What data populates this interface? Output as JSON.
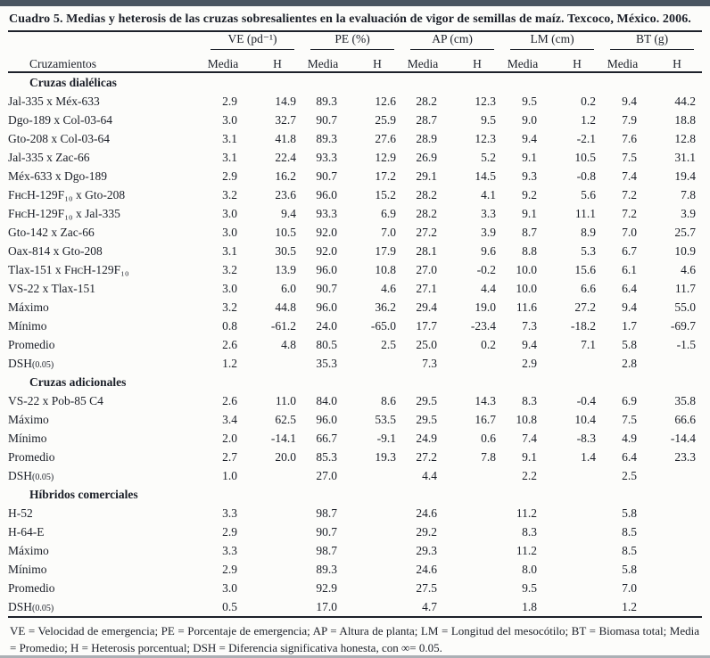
{
  "caption": "Cuadro 5. Medias y heterosis de las cruzas sobresalientes en la evaluación de vigor de semillas de maíz. Texcoco, México. 2006.",
  "table": {
    "row_header": "Cruzamientos",
    "groups": [
      {
        "label": "VE (pd⁻¹)"
      },
      {
        "label": "PE (%)"
      },
      {
        "label": "AP (cm)"
      },
      {
        "label": "LM (cm)"
      },
      {
        "label": "BT (g)"
      }
    ],
    "subheaders": [
      "Media",
      "H"
    ],
    "sections": [
      {
        "title": "Cruzas dialélicas",
        "rows": [
          {
            "label": "Jal-335 x Méx-633",
            "values": [
              "2.9",
              "14.9",
              "89.3",
              "12.6",
              "28.2",
              "12.3",
              "9.5",
              "0.2",
              "9.4",
              "44.2"
            ]
          },
          {
            "label": "Dgo-189 x Col-03-64",
            "values": [
              "3.0",
              "32.7",
              "90.7",
              "25.9",
              "28.7",
              "9.5",
              "9.0",
              "1.2",
              "7.9",
              "18.8"
            ]
          },
          {
            "label": "Gto-208 x Col-03-64",
            "values": [
              "3.1",
              "41.8",
              "89.3",
              "27.6",
              "28.9",
              "12.3",
              "9.4",
              "-2.1",
              "7.6",
              "12.8"
            ]
          },
          {
            "label": "Jal-335 x Zac-66",
            "values": [
              "3.1",
              "22.4",
              "93.3",
              "12.9",
              "26.9",
              "5.2",
              "9.1",
              "10.5",
              "7.5",
              "31.1"
            ]
          },
          {
            "label": "Méx-633 x Dgo-189",
            "values": [
              "2.9",
              "16.2",
              "90.7",
              "17.2",
              "29.1",
              "14.5",
              "9.3",
              "-0.8",
              "7.4",
              "19.4"
            ]
          },
          {
            "label": "FʜᴄH-129F₁₀ x Gto-208",
            "values": [
              "3.2",
              "23.6",
              "96.0",
              "15.2",
              "28.2",
              "4.1",
              "9.2",
              "5.6",
              "7.2",
              "7.8"
            ]
          },
          {
            "label": "FʜᴄH-129F₁₀ x Jal-335",
            "values": [
              "3.0",
              "9.4",
              "93.3",
              "6.9",
              "28.2",
              "3.3",
              "9.1",
              "11.1",
              "7.2",
              "3.9"
            ]
          },
          {
            "label": "Gto-142 x Zac-66",
            "values": [
              "3.0",
              "10.5",
              "92.0",
              "7.0",
              "27.2",
              "3.9",
              "8.7",
              "8.9",
              "7.0",
              "25.7"
            ]
          },
          {
            "label": "Oax-814 x Gto-208",
            "values": [
              "3.1",
              "30.5",
              "92.0",
              "17.9",
              "28.1",
              "9.6",
              "8.8",
              "5.3",
              "6.7",
              "10.9"
            ]
          },
          {
            "label": "Tlax-151 x FʜᴄH-129F₁₀",
            "values": [
              "3.2",
              "13.9",
              "96.0",
              "10.8",
              "27.0",
              "-0.2",
              "10.0",
              "15.6",
              "6.1",
              "4.6"
            ]
          },
          {
            "label": "VS-22 x Tlax-151",
            "values": [
              "3.0",
              "6.0",
              "90.7",
              "4.6",
              "27.1",
              "4.4",
              "10.0",
              "6.6",
              "6.4",
              "11.7"
            ]
          },
          {
            "label": "Máximo",
            "values": [
              "3.2",
              "44.8",
              "96.0",
              "36.2",
              "29.4",
              "19.0",
              "11.6",
              "27.2",
              "9.4",
              "55.0"
            ]
          },
          {
            "label": "Mínimo",
            "values": [
              "0.8",
              "-61.2",
              "24.0",
              "-65.0",
              "17.7",
              "-23.4",
              "7.3",
              "-18.2",
              "1.7",
              "-69.7"
            ]
          },
          {
            "label": "Promedio",
            "values": [
              "2.6",
              "4.8",
              "80.5",
              "2.5",
              "25.0",
              "0.2",
              "9.4",
              "7.1",
              "5.8",
              "-1.5"
            ]
          },
          {
            "label": "DSH",
            "sub": "(0.05)",
            "values": [
              "1.2",
              "",
              "35.3",
              "",
              "7.3",
              "",
              "2.9",
              "",
              "2.8",
              ""
            ]
          }
        ]
      },
      {
        "title": "Cruzas adicionales",
        "rows": [
          {
            "label": "VS-22 x Pob-85 C4",
            "values": [
              "2.6",
              "11.0",
              "84.0",
              "8.6",
              "29.5",
              "14.3",
              "8.3",
              "-0.4",
              "6.9",
              "35.8"
            ]
          },
          {
            "label": "Máximo",
            "values": [
              "3.4",
              "62.5",
              "96.0",
              "53.5",
              "29.5",
              "16.7",
              "10.8",
              "10.4",
              "7.5",
              "66.6"
            ]
          },
          {
            "label": "Mínimo",
            "values": [
              "2.0",
              "-14.1",
              "66.7",
              "-9.1",
              "24.9",
              "0.6",
              "7.4",
              "-8.3",
              "4.9",
              "-14.4"
            ]
          },
          {
            "label": "Promedio",
            "values": [
              "2.7",
              "20.0",
              "85.3",
              "19.3",
              "27.2",
              "7.8",
              "9.1",
              "1.4",
              "6.4",
              "23.3"
            ]
          },
          {
            "label": "DSH",
            "sub": "(0.05)",
            "values": [
              "1.0",
              "",
              "27.0",
              "",
              "4.4",
              "",
              "2.2",
              "",
              "2.5",
              ""
            ]
          }
        ]
      },
      {
        "title": "Híbridos comerciales",
        "rows": [
          {
            "label": "H-52",
            "values": [
              "3.3",
              "",
              "98.7",
              "",
              "24.6",
              "",
              "11.2",
              "",
              "5.8",
              ""
            ]
          },
          {
            "label": "H-64-E",
            "values": [
              "2.9",
              "",
              "90.7",
              "",
              "29.2",
              "",
              "8.3",
              "",
              "8.5",
              ""
            ]
          },
          {
            "label": "Máximo",
            "values": [
              "3.3",
              "",
              "98.7",
              "",
              "29.3",
              "",
              "11.2",
              "",
              "8.5",
              ""
            ]
          },
          {
            "label": "Mínimo",
            "values": [
              "2.9",
              "",
              "89.3",
              "",
              "24.6",
              "",
              "8.0",
              "",
              "5.8",
              ""
            ]
          },
          {
            "label": "Promedio",
            "values": [
              "3.0",
              "",
              "92.9",
              "",
              "27.5",
              "",
              "9.5",
              "",
              "7.0",
              ""
            ]
          },
          {
            "label": "DSH",
            "sub": "(0.05)",
            "values": [
              "0.5",
              "",
              "17.0",
              "",
              "4.7",
              "",
              "1.8",
              "",
              "1.2",
              ""
            ]
          }
        ]
      }
    ]
  },
  "footnote": "VE = Velocidad de emergencia; PE = Porcentaje de emergencia; AP = Altura de planta; LM = Longitud del mesocótilo; BT = Biomasa total; Media = Promedio; H = Heterosis porcentual; DSH = Diferencia significativa honesta, con ∞= 0.05."
}
